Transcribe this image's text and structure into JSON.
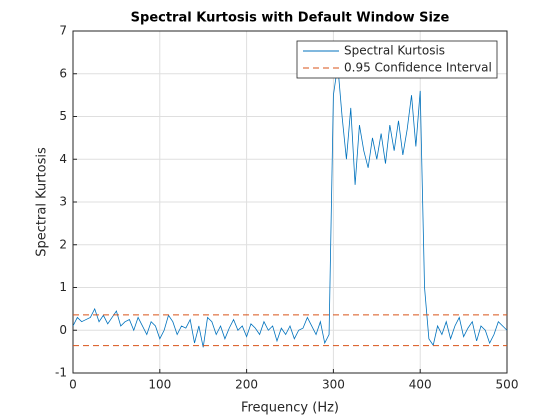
{
  "chart_data": {
    "type": "line",
    "title": "Spectral Kurtosis with Default Window Size",
    "x_label": "Frequency (Hz)",
    "y_label": "Spectral Kurtosis",
    "x": [
      0,
      5,
      10,
      15,
      20,
      25,
      30,
      35,
      40,
      45,
      50,
      55,
      60,
      65,
      70,
      75,
      80,
      85,
      90,
      95,
      100,
      105,
      110,
      115,
      120,
      125,
      130,
      135,
      140,
      145,
      150,
      155,
      160,
      165,
      170,
      175,
      180,
      185,
      190,
      195,
      200,
      205,
      210,
      215,
      220,
      225,
      230,
      235,
      240,
      245,
      250,
      255,
      260,
      265,
      270,
      275,
      280,
      285,
      290,
      295,
      300,
      305,
      310,
      315,
      320,
      325,
      330,
      335,
      340,
      345,
      350,
      355,
      360,
      365,
      370,
      375,
      380,
      385,
      390,
      395,
      400,
      405,
      410,
      415,
      420,
      425,
      430,
      435,
      440,
      445,
      450,
      455,
      460,
      465,
      470,
      475,
      480,
      485,
      490,
      495,
      500
    ],
    "series": [
      {
        "name": "Spectral Kurtosis",
        "color": "#0072bd",
        "values": [
          0.1,
          0.3,
          0.2,
          0.25,
          0.3,
          0.5,
          0.2,
          0.35,
          0.15,
          0.3,
          0.45,
          0.1,
          0.2,
          0.25,
          0.0,
          0.3,
          0.1,
          -0.1,
          0.2,
          0.1,
          -0.2,
          0.0,
          0.35,
          0.2,
          -0.1,
          0.1,
          0.05,
          0.25,
          -0.3,
          0.1,
          -0.4,
          0.3,
          0.2,
          -0.1,
          0.1,
          -0.2,
          0.05,
          0.25,
          0.0,
          0.1,
          -0.15,
          0.15,
          0.05,
          -0.1,
          0.2,
          0.0,
          0.1,
          -0.25,
          0.05,
          -0.1,
          0.1,
          -0.2,
          0.0,
          0.05,
          0.3,
          0.1,
          -0.1,
          0.2,
          -0.3,
          -0.1,
          5.5,
          6.2,
          5.0,
          4.0,
          5.2,
          3.4,
          4.8,
          4.2,
          3.8,
          4.5,
          4.0,
          4.6,
          3.9,
          4.8,
          4.2,
          4.9,
          4.1,
          4.7,
          5.5,
          4.3,
          5.6,
          1.0,
          -0.2,
          -0.35,
          0.1,
          -0.1,
          0.2,
          -0.2,
          0.1,
          0.3,
          -0.15,
          0.05,
          0.2,
          -0.25,
          0.1,
          0.0,
          -0.3,
          -0.1,
          0.2,
          0.1,
          0.0
        ]
      }
    ],
    "thresholds": {
      "name": "0.95 Confidence Interval",
      "color": "#d95319",
      "values": [
        0.36,
        -0.36
      ]
    },
    "xlim": [
      0,
      500
    ],
    "xticks": [
      0,
      100,
      200,
      300,
      400,
      500
    ],
    "ylim": [
      -1,
      7
    ],
    "yticks": [
      -1,
      0,
      1,
      2,
      3,
      4,
      5,
      6,
      7
    ],
    "grid": true,
    "legend": "top-right"
  }
}
